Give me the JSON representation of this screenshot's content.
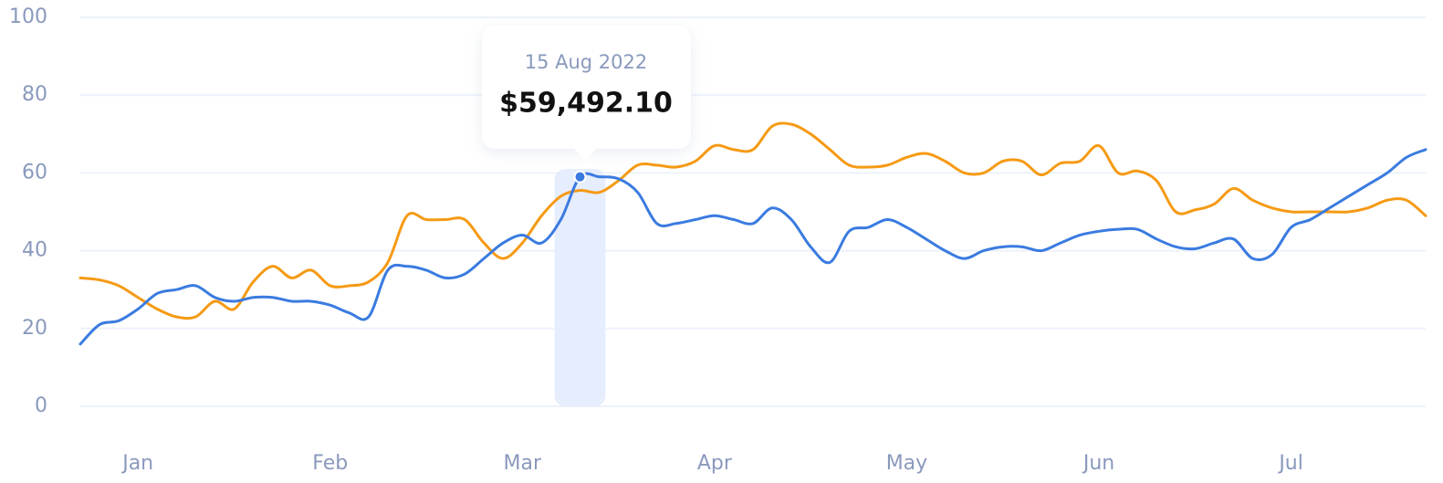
{
  "chart_data": {
    "type": "line",
    "categories": [
      null,
      null,
      null,
      "Jan",
      null,
      null,
      null,
      null,
      null,
      null,
      null,
      null,
      null,
      "Feb",
      null,
      null,
      null,
      null,
      null,
      null,
      null,
      null,
      null,
      "Mar",
      null,
      null,
      null,
      null,
      null,
      null,
      null,
      null,
      null,
      "Apr",
      null,
      null,
      null,
      null,
      null,
      null,
      null,
      null,
      null,
      "May",
      null,
      null,
      null,
      null,
      null,
      null,
      null,
      null,
      null,
      "Jun",
      null,
      null,
      null,
      null,
      null,
      null,
      null,
      null,
      null,
      "Jul",
      null,
      null,
      null,
      null,
      null,
      null,
      null
    ],
    "series": [
      {
        "color": "#f59a14",
        "values": [
          33,
          32.5,
          31,
          28,
          25,
          23,
          23,
          27,
          25,
          32,
          36,
          33,
          35,
          31,
          31,
          32,
          37,
          49,
          48,
          48,
          48,
          42,
          38,
          42,
          49,
          54,
          55.5,
          55,
          58,
          62,
          62,
          61.5,
          63,
          67,
          66,
          66,
          72,
          72.5,
          70,
          66,
          62,
          61.5,
          62,
          64,
          65,
          63,
          60,
          60,
          63,
          63,
          59.5,
          62.5,
          63,
          67,
          60,
          60.5,
          58,
          50,
          50.5,
          52,
          56,
          53,
          51,
          50,
          50,
          50,
          50,
          51,
          53,
          53,
          49
        ]
      },
      {
        "color": "#3a7be0",
        "values": [
          16,
          21,
          22,
          25,
          29,
          30,
          31,
          28,
          27,
          28,
          28,
          27,
          27,
          26,
          24,
          23,
          35,
          36,
          35,
          33,
          34,
          38,
          42,
          44,
          42,
          48,
          59,
          59,
          58.5,
          55,
          47,
          47,
          48,
          49,
          48,
          47,
          51,
          48,
          41,
          37,
          45,
          46,
          48,
          46,
          43,
          40,
          38,
          40,
          41,
          41,
          40,
          42,
          44,
          45,
          45.5,
          45.5,
          43,
          41,
          40.5,
          42,
          43,
          38,
          39,
          46,
          48,
          51,
          54,
          57,
          60,
          64,
          66
        ]
      }
    ],
    "ylim": [
      0,
      100
    ],
    "yticks": [
      0,
      20,
      40,
      60,
      80,
      100
    ],
    "grid": true,
    "tooltip": {
      "date": "15 Aug 2022",
      "value": "$59,492.10"
    }
  }
}
